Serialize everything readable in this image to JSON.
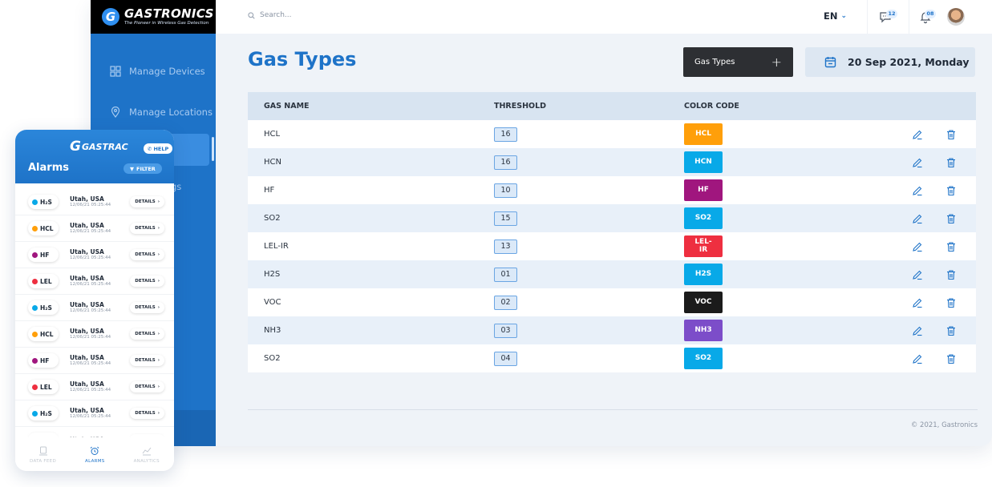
{
  "brand": {
    "name": "GASTRONICS",
    "tagline": "The Pioneer in Wireless Gas Detection",
    "logo_letter": "G"
  },
  "sidebar": {
    "items": [
      {
        "label": "Manage Devices",
        "icon": "grid-icon"
      },
      {
        "label": "Manage Locations",
        "icon": "location-pin-icon"
      }
    ],
    "partial_label": "gs"
  },
  "topbar": {
    "search_placeholder": "Search...",
    "language": "EN",
    "messages_badge": "12",
    "notifications_badge": "08"
  },
  "page": {
    "title": "Gas Types",
    "add_button_label": "Gas Types",
    "add_button_icon": "+",
    "date": "20 Sep 2021, Monday"
  },
  "table": {
    "headers": [
      "GAS NAME",
      "THRESHOLD",
      "COLOR CODE",
      ""
    ],
    "rows": [
      {
        "name": "HCL",
        "threshold": "16",
        "code": "HCL",
        "color": "#ff9f0a"
      },
      {
        "name": "HCN",
        "threshold": "16",
        "code": "HCN",
        "color": "#08a9e8"
      },
      {
        "name": "HF",
        "threshold": "10",
        "code": "HF",
        "color": "#a0167e"
      },
      {
        "name": "SO2",
        "threshold": "15",
        "code": "SO2",
        "color": "#08a9e8"
      },
      {
        "name": "LEL-IR",
        "threshold": "13",
        "code": "LEL-\nIR",
        "color": "#ee2f40"
      },
      {
        "name": "H2S",
        "threshold": "01",
        "code": "H2S",
        "color": "#08a9e8"
      },
      {
        "name": "VOC",
        "threshold": "02",
        "code": "VOC",
        "color": "#1b1b1b"
      },
      {
        "name": "NH3",
        "threshold": "03",
        "code": "NH3",
        "color": "#7c4dc9"
      },
      {
        "name": "SO2",
        "threshold": "04",
        "code": "SO2",
        "color": "#08a9e8"
      }
    ]
  },
  "footer": {
    "copyright": "© 2021, Gastronics"
  },
  "mobile": {
    "logo_text": "GASTRAC",
    "help_label": "HELP",
    "title": "Alarms",
    "filter_label": "FILTER",
    "alarms": [
      {
        "gas": "H₂S",
        "dot": "#08a9e8",
        "location": "Utah, USA",
        "time": "12/06/21  05:25:44",
        "action": "DETAILS"
      },
      {
        "gas": "HCL",
        "dot": "#ff9f0a",
        "location": "Utah, USA",
        "time": "12/06/21  05:25:44",
        "action": "DETAILS"
      },
      {
        "gas": "HF",
        "dot": "#a0167e",
        "location": "Utah, USA",
        "time": "12/06/21  05:25:44",
        "action": "DETAILS"
      },
      {
        "gas": "LEL",
        "dot": "#ee2f40",
        "location": "Utah, USA",
        "time": "12/06/21  05:25:44",
        "action": "DETAILS"
      },
      {
        "gas": "H₂S",
        "dot": "#08a9e8",
        "location": "Utah, USA",
        "time": "12/06/21  05:25:44",
        "action": "DETAILS"
      },
      {
        "gas": "HCL",
        "dot": "#ff9f0a",
        "location": "Utah, USA",
        "time": "12/06/21  05:25:44",
        "action": "DETAILS"
      },
      {
        "gas": "HF",
        "dot": "#a0167e",
        "location": "Utah, USA",
        "time": "12/06/21  05:25:44",
        "action": "DETAILS"
      },
      {
        "gas": "LEL",
        "dot": "#ee2f40",
        "location": "Utah, USA",
        "time": "12/06/21  05:25:44",
        "action": "DETAILS"
      },
      {
        "gas": "H₂S",
        "dot": "#08a9e8",
        "location": "Utah, USA",
        "time": "12/06/21  05:25:44",
        "action": "DETAILS"
      },
      {
        "gas": "HCL",
        "dot": "#ff9f0a",
        "location": "Utah, USA",
        "time": "",
        "action": "DETAILS"
      }
    ],
    "nav": [
      {
        "label": "DATA FEED",
        "icon": "data-feed-icon",
        "active": false
      },
      {
        "label": "ALARMS",
        "icon": "alarm-clock-icon",
        "active": true
      },
      {
        "label": "ANALYTICS",
        "icon": "analytics-icon",
        "active": false
      }
    ]
  }
}
